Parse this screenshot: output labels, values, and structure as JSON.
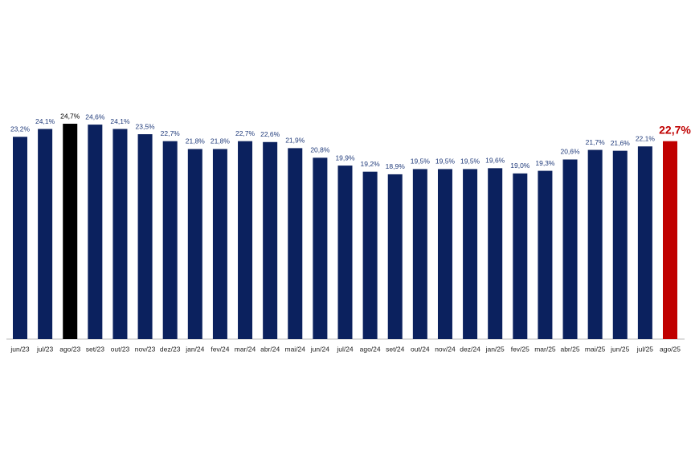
{
  "chart_data": {
    "type": "bar",
    "categories": [
      "jun/23",
      "jul/23",
      "ago/23",
      "set/23",
      "out/23",
      "nov/23",
      "dez/23",
      "jan/24",
      "fev/24",
      "mar/24",
      "abr/24",
      "mai/24",
      "jun/24",
      "jul/24",
      "ago/24",
      "set/24",
      "out/24",
      "nov/24",
      "dez/24",
      "jan/25",
      "fev/25",
      "mar/25",
      "abr/25",
      "mai/25",
      "jun/25",
      "jul/25",
      "ago/25"
    ],
    "values": [
      23.2,
      24.1,
      24.7,
      24.6,
      24.1,
      23.5,
      22.7,
      21.8,
      21.8,
      22.7,
      22.6,
      21.9,
      20.8,
      19.9,
      19.2,
      18.9,
      19.5,
      19.5,
      19.5,
      19.6,
      19.0,
      19.3,
      20.6,
      21.7,
      21.6,
      22.1,
      22.7
    ],
    "value_labels": [
      "23,2%",
      "24,1%",
      "24,7%",
      "24,6%",
      "24,1%",
      "23,5%",
      "22,7%",
      "21,8%",
      "21,8%",
      "22,7%",
      "22,6%",
      "21,9%",
      "20,8%",
      "19,9%",
      "19,2%",
      "18,9%",
      "19,5%",
      "19,5%",
      "19,5%",
      "19,6%",
      "19,0%",
      "19,3%",
      "20,6%",
      "21,7%",
      "21,6%",
      "22,1%",
      "22,7%"
    ],
    "colors": [
      "#0b215e",
      "#0b215e",
      "#000000",
      "#0b215e",
      "#0b215e",
      "#0b215e",
      "#0b215e",
      "#0b215e",
      "#0b215e",
      "#0b215e",
      "#0b215e",
      "#0b215e",
      "#0b215e",
      "#0b215e",
      "#0b215e",
      "#0b215e",
      "#0b215e",
      "#0b215e",
      "#0b215e",
      "#0b215e",
      "#0b215e",
      "#0b215e",
      "#0b215e",
      "#0b215e",
      "#0b215e",
      "#0b215e",
      "#c00000"
    ]
  }
}
